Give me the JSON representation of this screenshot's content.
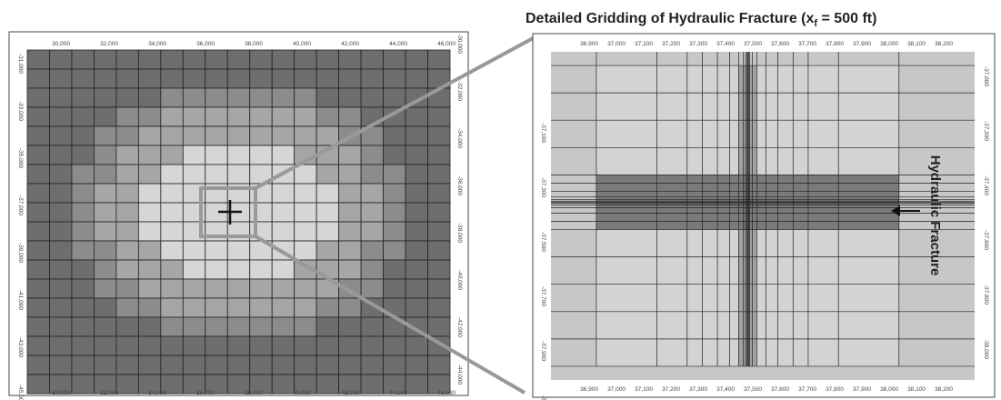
{
  "title": {
    "prefix": "Detailed Gridding of Hydraulic Fracture (x",
    "subscript": "f",
    "suffix": " = 500 ft)"
  },
  "fracture_label": "Hydraulic Fracture",
  "colors": {
    "outer_cell": "#6e6e6e",
    "ring2_cell": "#8c8c8c",
    "ring3_cell": "#a6a6a6",
    "inner_cell": "#d6d6d6",
    "zoom_border": "#999999",
    "detail_background": "#c7c7c7",
    "detail_fine_area": "#d3d3d3",
    "fracture_band": "#7a7a7a",
    "grid_line": "#222222"
  },
  "left_panel": {
    "x_ticks": [
      "30,000",
      "32,000",
      "34,000",
      "36,000",
      "38,000",
      "40,000",
      "42,000",
      "44,000",
      "46,000"
    ],
    "left_y_ticks": [
      "-31,000",
      "-33,000",
      "-35,000",
      "-37,000",
      "-39,000",
      "-41,000",
      "-43,000",
      "-45,000"
    ],
    "right_y_ticks": [
      "-30,000",
      "-32,000",
      "-34,000",
      "-36,000",
      "-38,000",
      "-40,000",
      "-42,000",
      "-44,000"
    ],
    "grid_levels": [
      [
        0,
        0,
        0,
        0,
        0,
        0,
        0,
        0,
        0,
        0,
        0,
        0,
        0,
        0,
        0,
        0,
        0,
        0,
        0
      ],
      [
        0,
        0,
        0,
        0,
        0,
        0,
        0,
        0,
        0,
        0,
        0,
        0,
        0,
        0,
        0,
        0,
        0,
        0,
        0
      ],
      [
        0,
        0,
        0,
        0,
        0,
        0,
        1,
        1,
        1,
        1,
        1,
        1,
        1,
        0,
        0,
        0,
        0,
        0,
        0
      ],
      [
        0,
        0,
        0,
        0,
        1,
        1,
        2,
        2,
        2,
        2,
        2,
        2,
        2,
        1,
        1,
        0,
        0,
        0,
        0
      ],
      [
        0,
        0,
        0,
        1,
        1,
        2,
        2,
        2,
        2,
        2,
        2,
        2,
        2,
        2,
        1,
        1,
        0,
        0,
        0
      ],
      [
        0,
        0,
        0,
        1,
        2,
        2,
        2,
        3,
        3,
        3,
        3,
        3,
        2,
        2,
        2,
        1,
        0,
        0,
        0
      ],
      [
        0,
        0,
        1,
        1,
        2,
        2,
        3,
        3,
        3,
        3,
        3,
        3,
        3,
        2,
        2,
        1,
        1,
        0,
        0
      ],
      [
        0,
        0,
        1,
        2,
        2,
        3,
        3,
        3,
        3,
        3,
        3,
        3,
        3,
        3,
        2,
        2,
        1,
        0,
        0
      ],
      [
        0,
        0,
        1,
        2,
        2,
        3,
        3,
        3,
        3,
        3,
        3,
        3,
        3,
        3,
        2,
        2,
        1,
        0,
        0
      ],
      [
        0,
        0,
        1,
        2,
        2,
        3,
        3,
        3,
        3,
        3,
        3,
        3,
        3,
        3,
        2,
        2,
        1,
        0,
        0
      ],
      [
        0,
        0,
        1,
        1,
        2,
        2,
        3,
        3,
        3,
        3,
        3,
        3,
        3,
        2,
        2,
        1,
        1,
        0,
        0
      ],
      [
        0,
        0,
        0,
        1,
        2,
        2,
        2,
        3,
        3,
        3,
        3,
        3,
        2,
        2,
        2,
        1,
        0,
        0,
        0
      ],
      [
        0,
        0,
        0,
        1,
        1,
        2,
        2,
        2,
        2,
        2,
        2,
        2,
        2,
        2,
        1,
        1,
        0,
        0,
        0
      ],
      [
        0,
        0,
        0,
        0,
        1,
        1,
        2,
        2,
        2,
        2,
        2,
        2,
        2,
        1,
        1,
        0,
        0,
        0,
        0
      ],
      [
        0,
        0,
        0,
        0,
        0,
        0,
        1,
        1,
        1,
        1,
        1,
        1,
        1,
        0,
        0,
        0,
        0,
        0,
        0
      ],
      [
        0,
        0,
        0,
        0,
        0,
        0,
        0,
        0,
        0,
        0,
        0,
        0,
        0,
        0,
        0,
        0,
        0,
        0,
        0
      ],
      [
        0,
        0,
        0,
        0,
        0,
        0,
        0,
        0,
        0,
        0,
        0,
        0,
        0,
        0,
        0,
        0,
        0,
        0,
        0
      ],
      [
        0,
        0,
        0,
        0,
        0,
        0,
        0,
        0,
        0,
        0,
        0,
        0,
        0,
        0,
        0,
        0,
        0,
        0,
        0
      ]
    ]
  },
  "right_panel": {
    "x_ticks": [
      "36,900",
      "37,000",
      "37,100",
      "37,200",
      "37,300",
      "37,400",
      "37,500",
      "37,600",
      "37,700",
      "37,800",
      "37,900",
      "38,000",
      "38,100",
      "38,200"
    ],
    "left_y_ticks": [
      "-37,100",
      "-37,300",
      "-37,500",
      "-37,700",
      "-37,900",
      "-38,100"
    ],
    "right_y_ticks": [
      "-37,000",
      "-37,200",
      "-37,400",
      "-37,600",
      "-37,800",
      "-38,000"
    ],
    "x_range": [
      36850,
      38250
    ],
    "y_range": [
      -36950,
      -38150
    ],
    "fine_area_x": [
      37000,
      38000
    ],
    "fine_area_y": [
      -37000,
      -38100
    ],
    "vertical_lines_x": [
      37000,
      37200,
      37300,
      37350,
      37400,
      37440,
      37470,
      37485,
      37493,
      37497,
      37500,
      37503,
      37507,
      37515,
      37530,
      37560,
      37600,
      37650,
      37700,
      37800,
      38000
    ],
    "horizontal_lines_y": [
      -37000,
      -37100,
      -37200,
      -37300,
      -37400,
      -37430,
      -37460,
      -37480,
      -37490,
      -37496,
      -37500,
      -37504,
      -37510,
      -37520,
      -37540,
      -37570,
      -37600,
      -37700,
      -37800,
      -37900,
      -38000
    ],
    "fracture_band_y": [
      -37400,
      -37600
    ],
    "fracture_band_x": [
      37470,
      37530
    ]
  }
}
